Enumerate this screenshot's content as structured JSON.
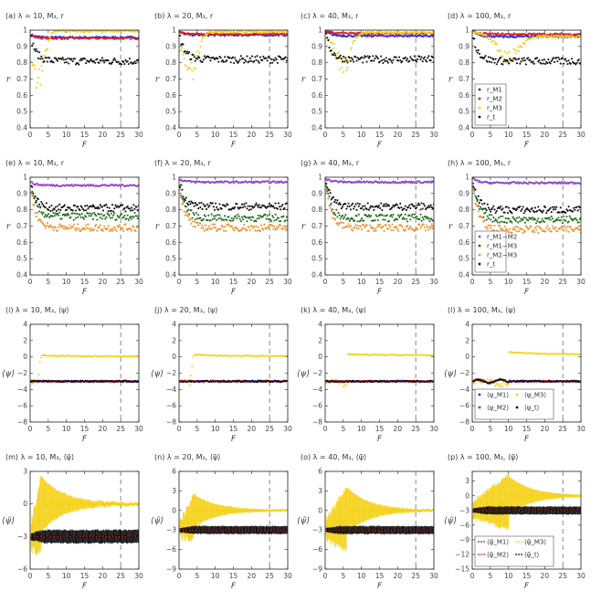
{
  "figure": {
    "xlabel": "F"
  },
  "colors": {
    "M1": "#2a2ae0",
    "M2": "#d42020",
    "M3": "#f5d21a",
    "t": "#111111",
    "M1M2": "#8e3fd1",
    "M1M3": "#1f6e1f",
    "M2M3": "#f0902a"
  },
  "chart_data": [
    {
      "id": "a",
      "type": "scatter",
      "title": "(a) λ = 10, M₃, r",
      "ylabel": "r",
      "xlim": [
        0,
        30
      ],
      "ylim": [
        0.4,
        1.0
      ],
      "xticks": [
        0,
        5,
        10,
        15,
        20,
        25,
        30
      ],
      "yticks": [
        0.4,
        0.5,
        0.6,
        0.7,
        0.8,
        0.9,
        1
      ],
      "vline": 25,
      "mode": "r",
      "series": [
        {
          "key": "M1",
          "plateau": 0.955,
          "start": 0.975
        },
        {
          "key": "M2",
          "plateau": 0.95,
          "start": 0.97
        },
        {
          "key": "M3",
          "plateau": 0.995,
          "start": 0.85,
          "dip": 0.65,
          "dipx": 2.5
        },
        {
          "key": "t",
          "plateau": 0.81,
          "start": 0.98
        }
      ]
    },
    {
      "id": "b",
      "type": "scatter",
      "title": "(b) λ = 20, M₃, r",
      "ylabel": "r",
      "xlim": [
        0,
        30
      ],
      "ylim": [
        0.4,
        1.0
      ],
      "xticks": [
        0,
        5,
        10,
        15,
        20,
        25,
        30
      ],
      "yticks": [
        0.4,
        0.5,
        0.6,
        0.7,
        0.8,
        0.9,
        1
      ],
      "vline": 25,
      "mode": "r",
      "series": [
        {
          "key": "M1",
          "plateau": 0.97,
          "start": 0.99
        },
        {
          "key": "M2",
          "plateau": 0.975,
          "start": 0.99
        },
        {
          "key": "M3",
          "plateau": 0.99,
          "start": 0.9,
          "dip": 0.68,
          "dipx": 3.5
        },
        {
          "key": "t",
          "plateau": 0.82,
          "start": 0.98
        }
      ]
    },
    {
      "id": "c",
      "type": "scatter",
      "title": "(c) λ = 40, M₃, r",
      "ylabel": "r",
      "xlim": [
        0,
        30
      ],
      "ylim": [
        0.4,
        1.0
      ],
      "xticks": [
        0,
        5,
        10,
        15,
        20,
        25,
        30
      ],
      "yticks": [
        0.4,
        0.5,
        0.6,
        0.7,
        0.8,
        0.9,
        1
      ],
      "vline": 25,
      "mode": "r",
      "series": [
        {
          "key": "M1",
          "plateau": 0.965,
          "start": 0.995
        },
        {
          "key": "M2",
          "plateau": 0.98,
          "start": 0.995
        },
        {
          "key": "M3",
          "plateau": 0.985,
          "start": 0.95,
          "dip": 0.72,
          "dipx": 5
        },
        {
          "key": "t",
          "plateau": 0.82,
          "start": 0.99
        }
      ]
    },
    {
      "id": "d",
      "type": "scatter",
      "title": "(d) λ = 100, M₃, r",
      "ylabel": "r",
      "xlim": [
        0,
        30
      ],
      "ylim": [
        0.4,
        1.0
      ],
      "xticks": [
        0,
        5,
        10,
        15,
        20,
        25,
        30
      ],
      "yticks": [
        0.4,
        0.5,
        0.6,
        0.7,
        0.8,
        0.9,
        1
      ],
      "vline": 25,
      "mode": "r",
      "legend": {
        "position": "lower-left",
        "columns": 1,
        "entries": [
          {
            "key": "M1",
            "label": "r_M1"
          },
          {
            "key": "M2",
            "label": "r_M2"
          },
          {
            "key": "M3",
            "label": "r_M3"
          },
          {
            "key": "t",
            "label": "r_t"
          }
        ]
      },
      "series": [
        {
          "key": "M1",
          "plateau": 0.96,
          "start": 0.995
        },
        {
          "key": "M2",
          "plateau": 0.975,
          "start": 0.995
        },
        {
          "key": "M3",
          "plateau": 0.96,
          "start": 0.99,
          "dip": 0.79,
          "dipx": 10
        },
        {
          "key": "t",
          "plateau": 0.81,
          "start": 0.99
        }
      ]
    },
    {
      "id": "e",
      "type": "scatter",
      "title": "(e) λ = 10, M₃, r",
      "ylabel": "r",
      "xlim": [
        0,
        30
      ],
      "ylim": [
        0.4,
        1.0
      ],
      "xticks": [
        0,
        5,
        10,
        15,
        20,
        25,
        30
      ],
      "yticks": [
        0.4,
        0.5,
        0.6,
        0.7,
        0.8,
        0.9,
        1
      ],
      "vline": 25,
      "mode": "r",
      "series": [
        {
          "key": "M1M2",
          "plateau": 0.95,
          "start": 0.97
        },
        {
          "key": "t",
          "plateau": 0.81,
          "start": 0.98
        },
        {
          "key": "M1M3",
          "plateau": 0.76,
          "start": 0.96
        },
        {
          "key": "M2M3",
          "plateau": 0.69,
          "start": 0.96
        }
      ]
    },
    {
      "id": "f",
      "type": "scatter",
      "title": "(f) λ = 20, M₃, r",
      "ylabel": "r",
      "xlim": [
        0,
        30
      ],
      "ylim": [
        0.4,
        1.0
      ],
      "xticks": [
        0,
        5,
        10,
        15,
        20,
        25,
        30
      ],
      "yticks": [
        0.4,
        0.5,
        0.6,
        0.7,
        0.8,
        0.9,
        1
      ],
      "vline": 25,
      "mode": "r",
      "series": [
        {
          "key": "M1M2",
          "plateau": 0.97,
          "start": 0.99
        },
        {
          "key": "t",
          "plateau": 0.82,
          "start": 0.99
        },
        {
          "key": "M1M3",
          "plateau": 0.75,
          "start": 0.98
        },
        {
          "key": "M2M3",
          "plateau": 0.69,
          "start": 0.98
        }
      ]
    },
    {
      "id": "g",
      "type": "scatter",
      "title": "(g) λ = 40, M₃, r",
      "ylabel": "r",
      "xlim": [
        0,
        30
      ],
      "ylim": [
        0.4,
        1.0
      ],
      "xticks": [
        0,
        5,
        10,
        15,
        20,
        25,
        30
      ],
      "yticks": [
        0.4,
        0.5,
        0.6,
        0.7,
        0.8,
        0.9,
        1
      ],
      "vline": 25,
      "mode": "r",
      "series": [
        {
          "key": "M1M2",
          "plateau": 0.97,
          "start": 0.995
        },
        {
          "key": "t",
          "plateau": 0.82,
          "start": 0.995
        },
        {
          "key": "M1M3",
          "plateau": 0.75,
          "start": 0.99
        },
        {
          "key": "M2M3",
          "plateau": 0.69,
          "start": 0.99
        }
      ]
    },
    {
      "id": "h",
      "type": "scatter",
      "title": "(h) λ = 100, M₃, r",
      "ylabel": "r",
      "xlim": [
        0,
        30
      ],
      "ylim": [
        0.4,
        1.0
      ],
      "xticks": [
        0,
        5,
        10,
        15,
        20,
        25,
        30
      ],
      "yticks": [
        0.4,
        0.5,
        0.6,
        0.7,
        0.8,
        0.9,
        1
      ],
      "vline": 25,
      "mode": "r",
      "legend": {
        "position": "lower-left",
        "columns": 1,
        "entries": [
          {
            "key": "M1M2",
            "label": "r_M1−M2"
          },
          {
            "key": "M1M3",
            "label": "r_M1−M3"
          },
          {
            "key": "M2M3",
            "label": "r_M2−M3"
          },
          {
            "key": "t",
            "label": "r_t"
          }
        ]
      },
      "series": [
        {
          "key": "M1M2",
          "plateau": 0.965,
          "start": 0.995
        },
        {
          "key": "t",
          "plateau": 0.8,
          "start": 0.995
        },
        {
          "key": "M1M3",
          "plateau": 0.74,
          "start": 0.995
        },
        {
          "key": "M2M3",
          "plateau": 0.68,
          "start": 0.995
        }
      ]
    },
    {
      "id": "i",
      "type": "scatter",
      "title": "(i) λ = 10, M₃, ⟨ψ⟩",
      "ylabel": "⟨ψ⟩",
      "xlim": [
        0,
        30
      ],
      "ylim": [
        -8,
        4
      ],
      "xticks": [
        0,
        5,
        10,
        15,
        20,
        25,
        30
      ],
      "yticks": [
        -8,
        -6,
        -4,
        -2,
        0,
        2,
        4
      ],
      "vline": 25,
      "mode": "psi",
      "series": [
        {
          "key": "M3",
          "plateau": 0.05,
          "jump": 3
        },
        {
          "key": "M1",
          "plateau": -3.0
        },
        {
          "key": "M2",
          "plateau": -3.0
        },
        {
          "key": "t",
          "plateau": -3.0
        }
      ]
    },
    {
      "id": "j",
      "type": "scatter",
      "title": "(j) λ = 20, M₃, ⟨ψ⟩",
      "ylabel": "⟨ψ⟩",
      "xlim": [
        0,
        30
      ],
      "ylim": [
        -8,
        4
      ],
      "xticks": [
        0,
        5,
        10,
        15,
        20,
        25,
        30
      ],
      "yticks": [
        -8,
        -6,
        -4,
        -2,
        0,
        2,
        4
      ],
      "vline": 25,
      "mode": "psi",
      "series": [
        {
          "key": "M3",
          "plateau": 0.1,
          "jump": 4
        },
        {
          "key": "M1",
          "plateau": -3.0
        },
        {
          "key": "M2",
          "plateau": -3.0
        },
        {
          "key": "t",
          "plateau": -3.0
        }
      ]
    },
    {
      "id": "k",
      "type": "scatter",
      "title": "(k) λ = 40, M₃, ⟨ψ⟩",
      "ylabel": "⟨ψ⟩",
      "xlim": [
        0,
        30
      ],
      "ylim": [
        -8,
        4
      ],
      "xticks": [
        0,
        5,
        10,
        15,
        20,
        25,
        30
      ],
      "yticks": [
        -8,
        -6,
        -4,
        -2,
        0,
        2,
        4
      ],
      "vline": 25,
      "mode": "psi",
      "series": [
        {
          "key": "M3",
          "plateau": 0.2,
          "jump": 6
        },
        {
          "key": "M1",
          "plateau": -3.0
        },
        {
          "key": "M2",
          "plateau": -3.0
        },
        {
          "key": "t",
          "plateau": -3.0
        }
      ]
    },
    {
      "id": "l",
      "type": "scatter",
      "title": "(l) λ = 100, M₃, ⟨ψ⟩",
      "ylabel": "⟨ψ⟩",
      "xlim": [
        0,
        30
      ],
      "ylim": [
        -8,
        4
      ],
      "xticks": [
        0,
        5,
        10,
        15,
        20,
        25,
        30
      ],
      "yticks": [
        -8,
        -6,
        -4,
        -2,
        0,
        2,
        4
      ],
      "vline": 25,
      "mode": "psi",
      "legend": {
        "position": "lower-left",
        "columns": 2,
        "entries": [
          {
            "key": "M1",
            "label": "⟨ψ_M1⟩"
          },
          {
            "key": "M3",
            "label": "⟨ψ_M3⟩"
          },
          {
            "key": "M2",
            "label": "⟨ψ_M2⟩"
          },
          {
            "key": "t",
            "label": "⟨ψ_t⟩"
          }
        ]
      },
      "series": [
        {
          "key": "M3",
          "plateau": 0.3,
          "jump": 10,
          "start_hi": 0.6
        },
        {
          "key": "M1",
          "plateau": -3.0
        },
        {
          "key": "M2",
          "plateau": -3.0
        },
        {
          "key": "t",
          "plateau": -3.0
        }
      ]
    },
    {
      "id": "m",
      "type": "scatter",
      "title": "(m) λ = 10, M₃, ⟨ψ̃⟩",
      "ylabel": "⟨ψ̃⟩",
      "xlim": [
        0,
        30
      ],
      "ylim": [
        -6,
        3
      ],
      "xticks": [
        0,
        5,
        10,
        15,
        20,
        25,
        30
      ],
      "yticks": [
        -6,
        -3,
        0,
        3
      ],
      "vline": 25,
      "mode": "err",
      "series": [
        {
          "key": "M3",
          "plateau": 0.0,
          "jump": 3,
          "err": 2.5
        },
        {
          "key": "t",
          "plateau": -3.0,
          "err": 0.6
        }
      ]
    },
    {
      "id": "n",
      "type": "scatter",
      "title": "(n) λ = 20, M₃, ⟨ψ̃⟩",
      "ylabel": "⟨ψ̃⟩",
      "xlim": [
        0,
        30
      ],
      "ylim": [
        -9,
        6
      ],
      "xticks": [
        0,
        5,
        10,
        15,
        20,
        25,
        30
      ],
      "yticks": [
        -9,
        -6,
        -3,
        0,
        3,
        6
      ],
      "vline": 25,
      "mode": "err",
      "series": [
        {
          "key": "M3",
          "plateau": 0.0,
          "jump": 4,
          "err": 2.5
        },
        {
          "key": "t",
          "plateau": -3.0,
          "err": 0.6
        }
      ]
    },
    {
      "id": "o",
      "type": "scatter",
      "title": "(o) λ = 40, M₃, ⟨ψ̃⟩",
      "ylabel": "⟨ψ̃⟩",
      "xlim": [
        0,
        30
      ],
      "ylim": [
        -9,
        6
      ],
      "xticks": [
        0,
        5,
        10,
        15,
        20,
        25,
        30
      ],
      "yticks": [
        -9,
        -6,
        -3,
        0,
        3,
        6
      ],
      "vline": 25,
      "mode": "err",
      "series": [
        {
          "key": "M3",
          "plateau": 0.0,
          "jump": 6,
          "err": 3.5
        },
        {
          "key": "t",
          "plateau": -3.0,
          "err": 0.6
        }
      ]
    },
    {
      "id": "p",
      "type": "scatter",
      "title": "(p) λ = 100, M₃, ⟨ψ̃⟩",
      "ylabel": "⟨ψ̃⟩",
      "xlim": [
        0,
        30
      ],
      "ylim": [
        -15,
        5
      ],
      "xticks": [
        0,
        5,
        10,
        15,
        20,
        25,
        30
      ],
      "yticks": [
        -15,
        -12,
        -9,
        -6,
        -3,
        0,
        3
      ],
      "vline": 25,
      "mode": "err",
      "legend": {
        "position": "lower-left",
        "columns": 2,
        "entries": [
          {
            "key": "M1",
            "label": "⟨ψ̃_M1⟩"
          },
          {
            "key": "M3",
            "label": "⟨ψ̃_M3⟩"
          },
          {
            "key": "M2",
            "label": "⟨ψ̃_M2⟩"
          },
          {
            "key": "t",
            "label": "⟨ψ̃_t⟩"
          }
        ]
      },
      "series": [
        {
          "key": "M3",
          "plateau": 0.0,
          "jump": 10,
          "err": 4.0
        },
        {
          "key": "t",
          "plateau": -3.0,
          "err": 0.8
        }
      ]
    }
  ]
}
